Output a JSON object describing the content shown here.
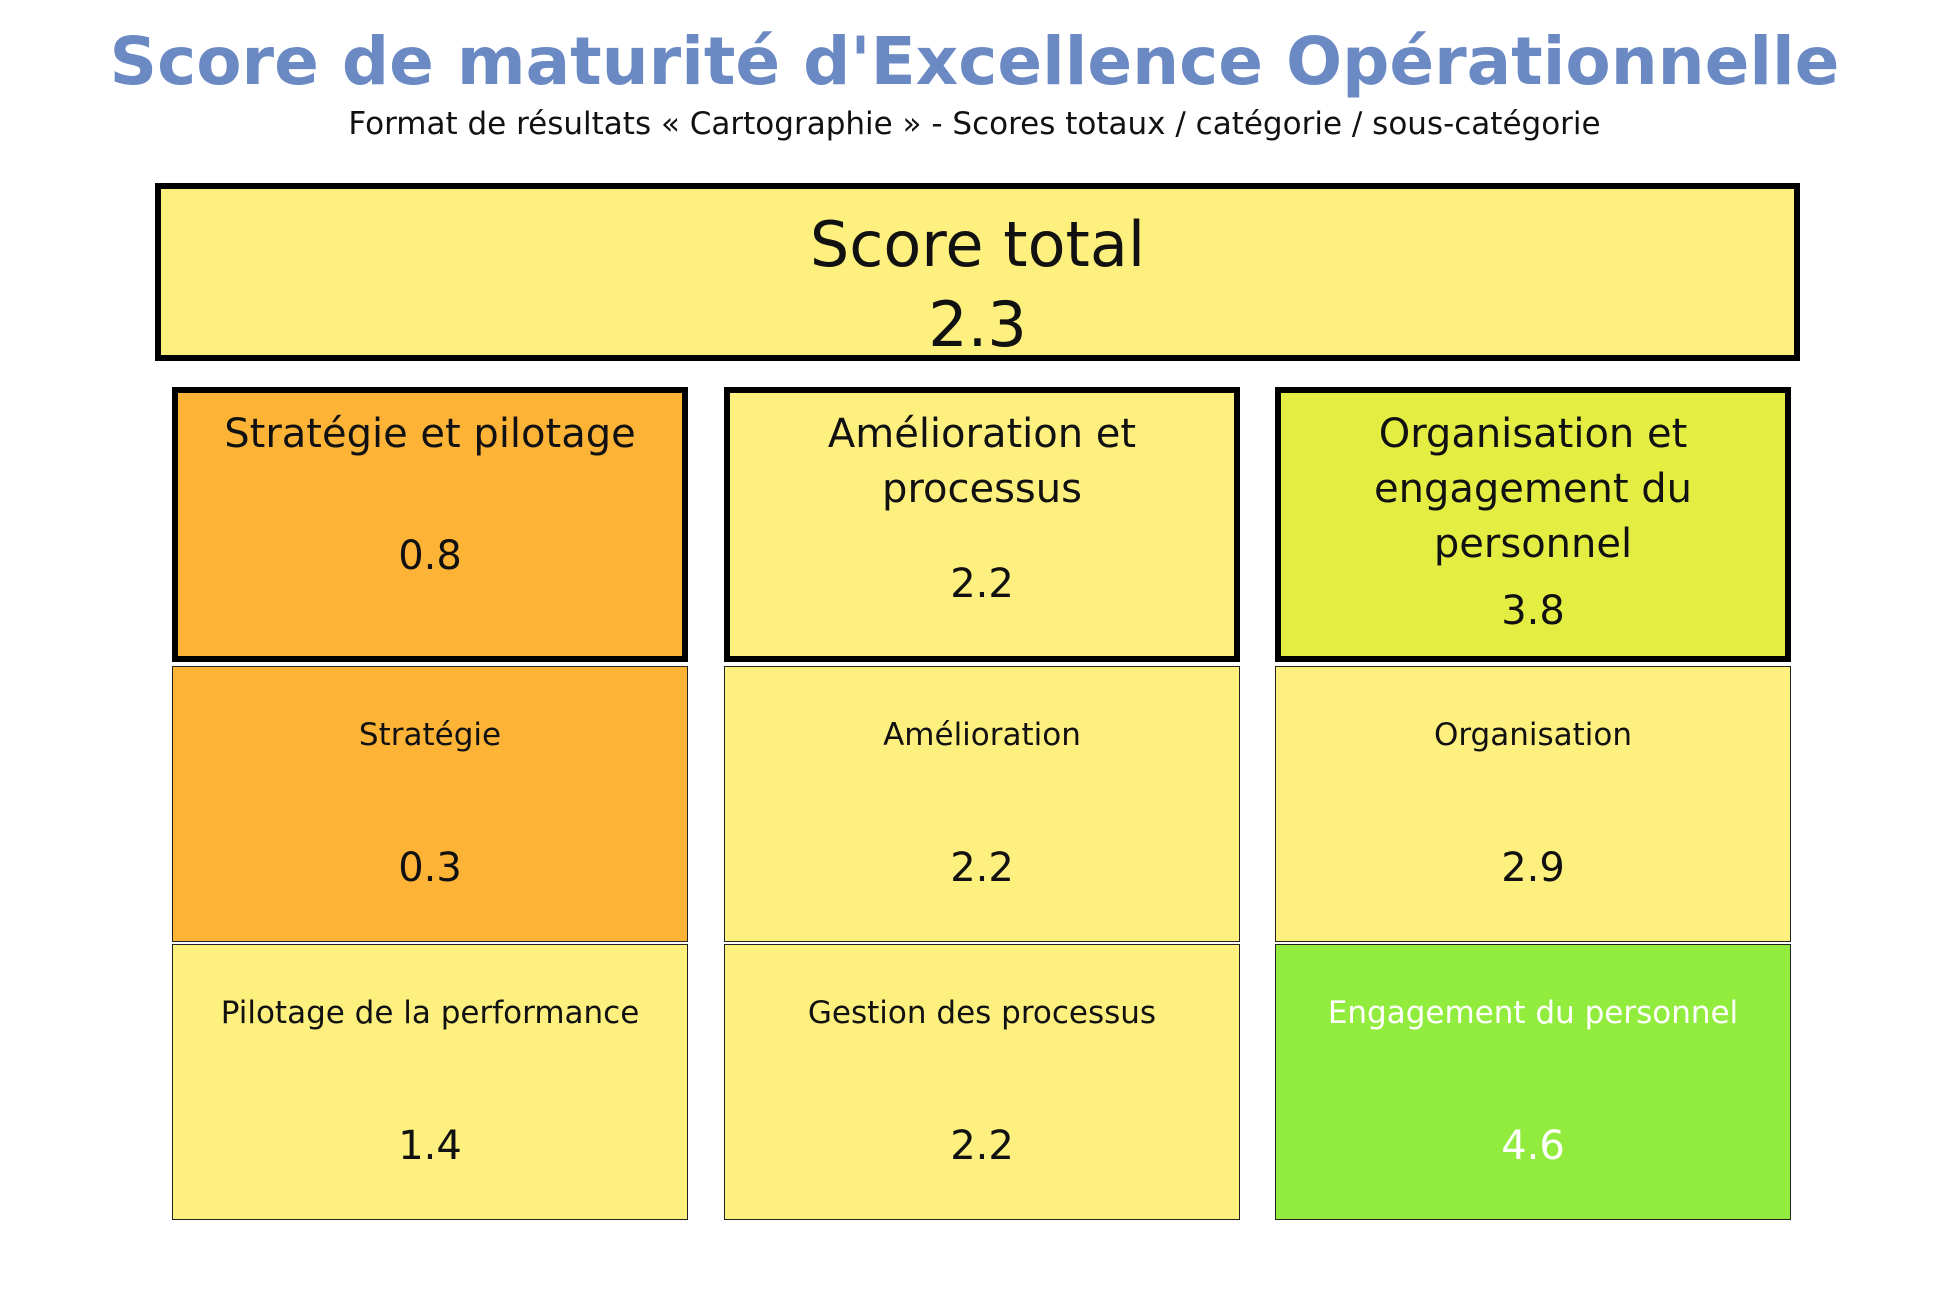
{
  "header": {
    "title": "Score de maturité d'Excellence Opérationnelle",
    "subtitle": "Format de résultats « Cartographie » - Scores totaux / catégorie / sous-catégorie"
  },
  "total": {
    "label": "Score total",
    "value": "2.3",
    "color": "#fdf07e"
  },
  "categories": [
    {
      "label": "Stratégie et pilotage",
      "value": "0.8",
      "color": "#fdb436",
      "subcategories": [
        {
          "label": "Stratégie",
          "value": "0.3",
          "color": "#fdb436"
        },
        {
          "label": "Pilotage de la performance",
          "value": "1.4",
          "color": "#fdf07e"
        }
      ]
    },
    {
      "label": "Amélioration et processus",
      "value": "2.2",
      "color": "#fdf07e",
      "subcategories": [
        {
          "label": "Amélioration",
          "value": "2.2",
          "color": "#fdf07e"
        },
        {
          "label": "Gestion des processus",
          "value": "2.2",
          "color": "#fdf07e"
        }
      ]
    },
    {
      "label": "Organisation et engagement du personnel",
      "value": "3.8",
      "color": "#e4ee42",
      "subcategories": [
        {
          "label": "Organisation",
          "value": "2.9",
          "color": "#fdf07e"
        },
        {
          "label": "Engagement du personnel",
          "value": "4.6",
          "color": "#92ec3e"
        }
      ]
    }
  ]
}
